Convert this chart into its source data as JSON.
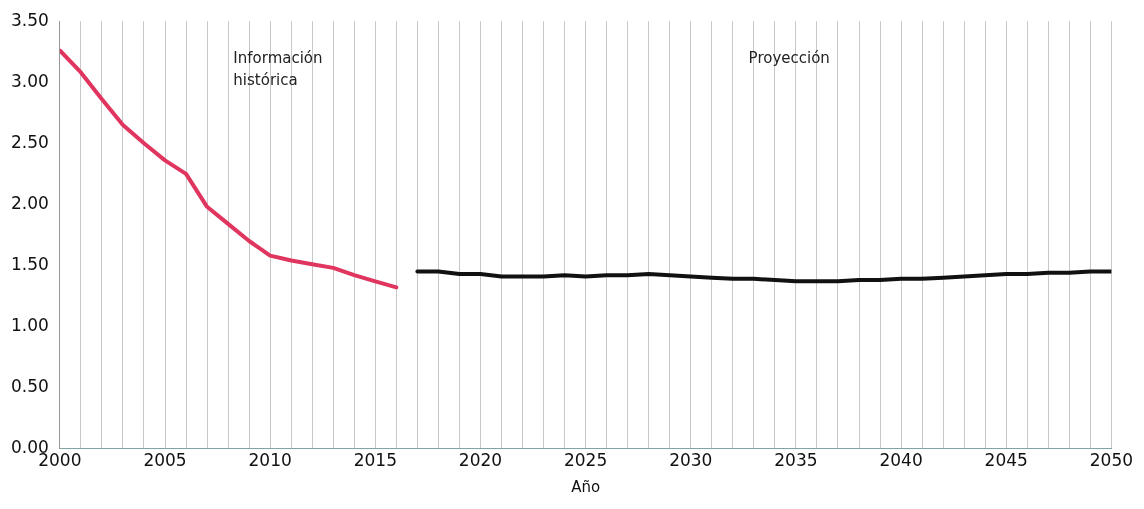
{
  "chart_data": {
    "type": "line",
    "xlabel": "Año",
    "annotations": [
      "Información histórica",
      "Proyección"
    ],
    "xlim": [
      2000,
      2050
    ],
    "xticks": [
      2000,
      {
        "value": 2001,
        "label": null
      },
      {
        "value": 2002,
        "label": null
      },
      {
        "value": 2003,
        "label": null
      },
      {
        "value": 2004,
        "label": null
      },
      2005,
      {
        "value": 2006,
        "label": null
      },
      {
        "value": 2007,
        "label": null
      },
      {
        "value": 2008,
        "label": null
      },
      {
        "value": 2009,
        "label": null
      },
      2010,
      {
        "value": 2011,
        "label": null
      },
      {
        "value": 2012,
        "label": null
      },
      {
        "value": 2013,
        "label": null
      },
      {
        "value": 2014,
        "label": null
      },
      2015,
      {
        "value": 2016,
        "label": null
      },
      {
        "value": 2017,
        "label": null
      },
      {
        "value": 2018,
        "label": null
      },
      {
        "value": 2019,
        "label": null
      },
      2020,
      {
        "value": 2021,
        "label": null
      },
      {
        "value": 2022,
        "label": null
      },
      {
        "value": 2023,
        "label": null
      },
      {
        "value": 2024,
        "label": null
      },
      2025,
      {
        "value": 2026,
        "label": null
      },
      {
        "value": 2027,
        "label": null
      },
      {
        "value": 2028,
        "label": null
      },
      {
        "value": 2029,
        "label": null
      },
      2030,
      {
        "value": 2031,
        "label": null
      },
      {
        "value": 2032,
        "label": null
      },
      {
        "value": 2033,
        "label": null
      },
      {
        "value": 2034,
        "label": null
      },
      2035,
      {
        "value": 2036,
        "label": null
      },
      {
        "value": 2037,
        "label": null
      },
      {
        "value": 2038,
        "label": null
      },
      {
        "value": 2039,
        "label": null
      },
      2040,
      {
        "value": 2041,
        "label": null
      },
      {
        "value": 2042,
        "label": null
      },
      {
        "value": 2043,
        "label": null
      },
      {
        "value": 2044,
        "label": null
      },
      2045,
      {
        "value": 2046,
        "label": null
      },
      {
        "value": 2047,
        "label": null
      },
      {
        "value": 2048,
        "label": null
      },
      {
        "value": 2049,
        "label": null
      },
      2050
    ],
    "ylim": [
      0,
      3.5
    ],
    "yticks": [
      {
        "value": 0,
        "label": "0.00"
      },
      {
        "value": 0.5,
        "label": "0.50"
      },
      {
        "value": 1,
        "label": "1.00"
      },
      {
        "value": 1.5,
        "label": "1.50"
      },
      {
        "value": 2,
        "label": "2.00"
      },
      {
        "value": 2.5,
        "label": "2.50"
      },
      {
        "value": 3,
        "label": "3.00"
      },
      {
        "value": 3.5,
        "label": "3.50"
      }
    ],
    "grid": "x",
    "marker": "none",
    "line_style": "solid",
    "series": [
      {
        "color": "#e0355f",
        "x": [
          2000,
          2001,
          2002,
          2003,
          2004,
          2005,
          2006,
          2007,
          2008,
          2009,
          2010,
          2011,
          2012,
          2013,
          2014,
          2015,
          2016
        ],
        "values": [
          3.26,
          3.08,
          2.86,
          2.65,
          2.5,
          2.36,
          2.25,
          1.98,
          1.84,
          1.7,
          1.58,
          1.54,
          1.51,
          1.48,
          1.42,
          1.37,
          1.32
        ]
      },
      {
        "color": "#111111",
        "x": [
          2017,
          2018,
          2019,
          2020,
          2021,
          2022,
          2023,
          2024,
          2025,
          2026,
          2027,
          2028,
          2029,
          2030,
          2031,
          2032,
          2033,
          2034,
          2035,
          2036,
          2037,
          2038,
          2039,
          2040,
          2041,
          2042,
          2043,
          2044,
          2045,
          2046,
          2047,
          2048,
          2049,
          2050
        ],
        "values": [
          1.45,
          1.45,
          1.43,
          1.43,
          1.41,
          1.41,
          1.41,
          1.42,
          1.41,
          1.42,
          1.42,
          1.43,
          1.42,
          1.41,
          1.4,
          1.39,
          1.39,
          1.38,
          1.37,
          1.37,
          1.37,
          1.38,
          1.38,
          1.39,
          1.39,
          1.4,
          1.41,
          1.42,
          1.43,
          1.43,
          1.44,
          1.44,
          1.45,
          1.45
        ]
      }
    ]
  }
}
